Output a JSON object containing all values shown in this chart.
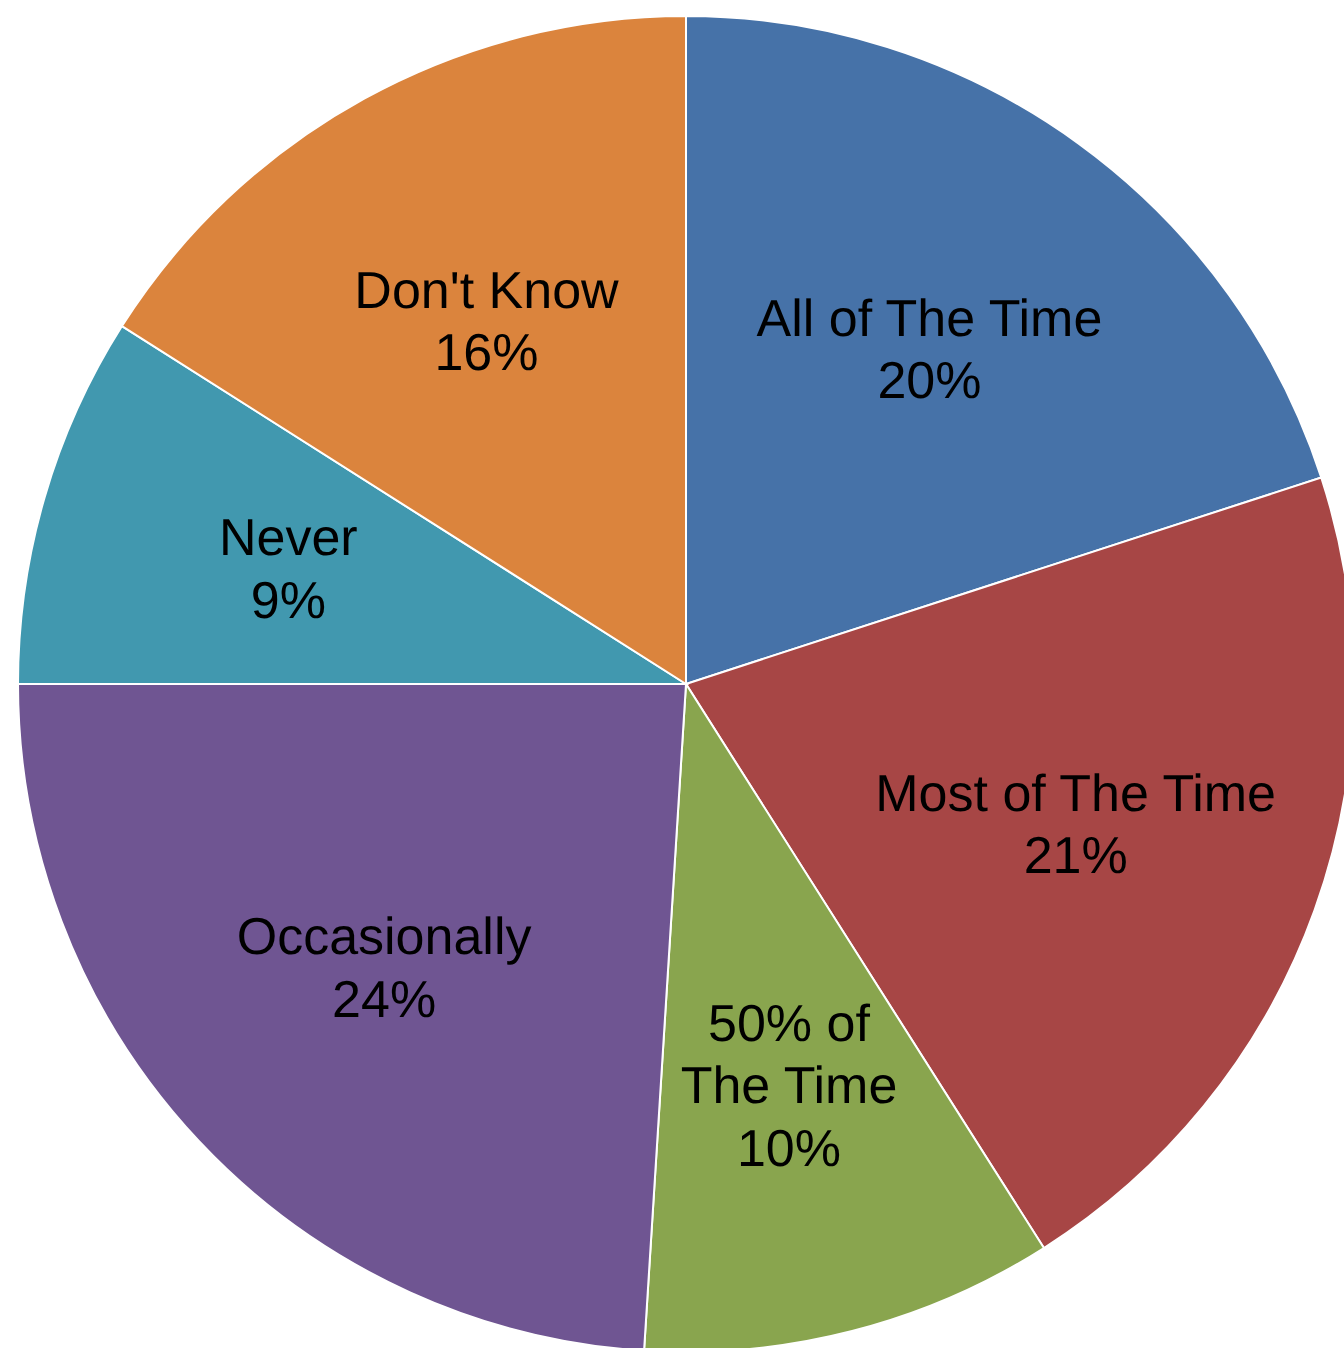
{
  "chart_data": {
    "type": "pie",
    "categories": [
      "All of The Time",
      "Most of The Time",
      "50% of The Time",
      "Occasionally",
      "Never",
      "Don't Know"
    ],
    "values": [
      20,
      21,
      10,
      24,
      9,
      16
    ],
    "colors": [
      "#4672a8",
      "#a74645",
      "#89a54e",
      "#6f5592",
      "#4198af",
      "#db843d"
    ],
    "value_labels": [
      "20%",
      "21%",
      "10%",
      "24%",
      "9%",
      "16%"
    ]
  }
}
